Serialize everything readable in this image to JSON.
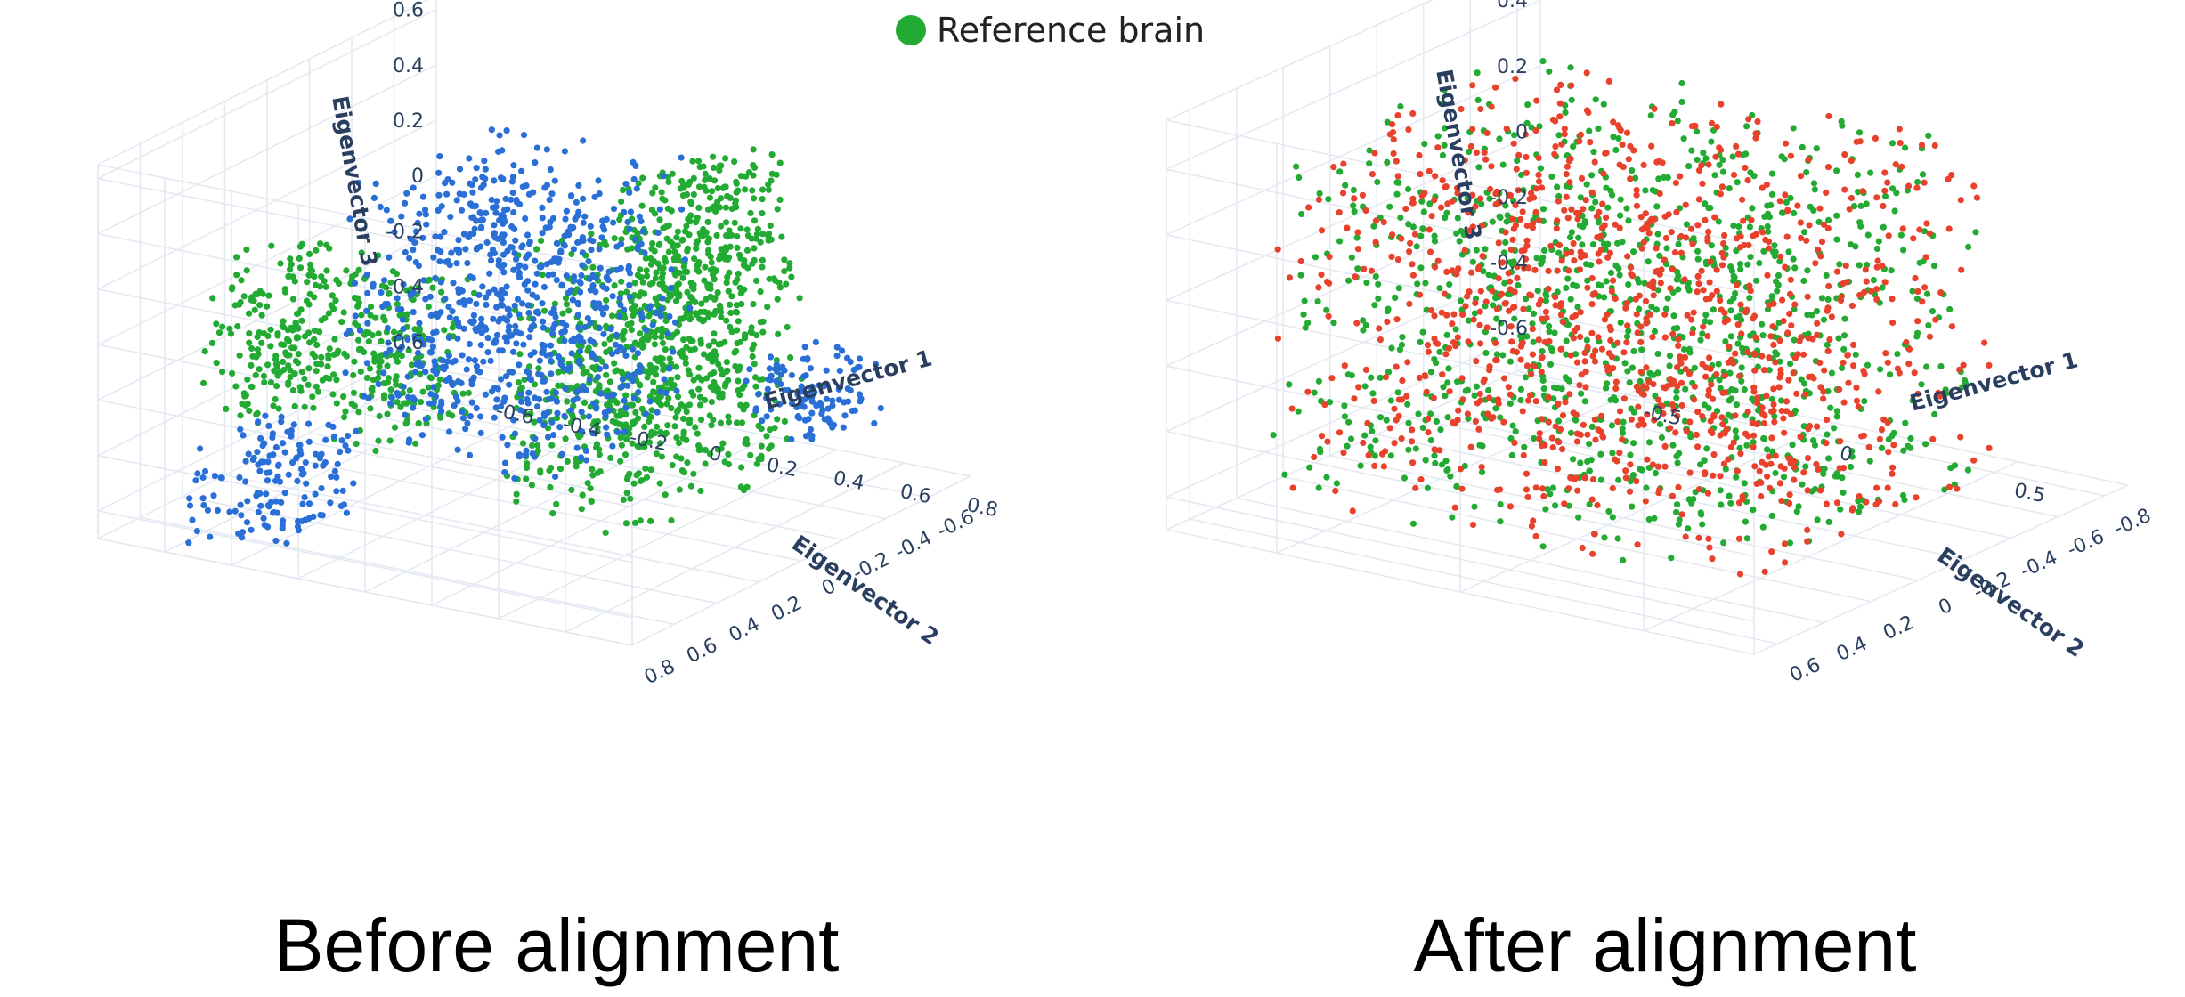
{
  "legend": {
    "label": "Reference brain",
    "color": "#22aa33"
  },
  "captions": {
    "left": "Before alignment",
    "right": "After alignment"
  },
  "chart_data": [
    {
      "type": "scatter",
      "dimensions": 3,
      "title": "Before alignment",
      "xlabel": "Eigenvector 1",
      "ylabel": "Eigenvector 2",
      "zlabel": "Eigenvector 3",
      "x_ticks": [
        "-0.6",
        "-0.4",
        "-0.2",
        "0",
        "0.2",
        "0.4",
        "0.6",
        "0.8"
      ],
      "y_ticks": [
        "-0.6",
        "-0.4",
        "-0.2",
        "0",
        "0.2",
        "0.4",
        "0.6",
        "0.8"
      ],
      "z_ticks": [
        "-0.6",
        "-0.4",
        "-0.2",
        "0",
        "0.2",
        "0.4",
        "0.6"
      ],
      "xlim": [
        -0.8,
        0.8
      ],
      "ylim": [
        -0.8,
        0.8
      ],
      "zlim": [
        -0.7,
        0.65
      ],
      "grid": true,
      "legend_position": "top",
      "series": [
        {
          "name": "Reference brain",
          "color": "#22aa33",
          "clusters": [
            {
              "x": [
                -0.5,
                0.1
              ],
              "y": [
                0.4,
                0.8
              ],
              "z": [
                -0.2,
                0.35
              ]
            },
            {
              "x": [
                0.0,
                0.45
              ],
              "y": [
                -0.6,
                0.2
              ],
              "z": [
                -0.65,
                -0.05
              ]
            },
            {
              "x": [
                0.3,
                0.6
              ],
              "y": [
                -0.3,
                0.1
              ],
              "z": [
                0.1,
                0.6
              ]
            },
            {
              "x": [
                0.1,
                0.55
              ],
              "y": [
                -0.4,
                0.3
              ],
              "z": [
                -0.3,
                0.35
              ]
            }
          ]
        },
        {
          "color": "#2a6fd6",
          "clusters": [
            {
              "x": [
                -0.25,
                0.35
              ],
              "y": [
                -0.2,
                0.5
              ],
              "z": [
                -0.35,
                0.6
              ]
            },
            {
              "x": [
                -0.6,
                -0.3
              ],
              "y": [
                0.3,
                0.75
              ],
              "z": [
                -0.7,
                -0.35
              ]
            },
            {
              "x": [
                0.55,
                0.8
              ],
              "y": [
                -0.4,
                -0.1
              ],
              "z": [
                -0.35,
                -0.1
              ]
            },
            {
              "x": [
                -0.3,
                0.4
              ],
              "y": [
                -0.1,
                0.5
              ],
              "z": [
                -0.3,
                0.45
              ]
            }
          ]
        }
      ]
    },
    {
      "type": "scatter",
      "dimensions": 3,
      "title": "After alignment",
      "xlabel": "Eigenvector 1",
      "ylabel": "Eigenvector 2",
      "zlabel": "Eigenvector 3",
      "x_ticks": [
        "-0.5",
        "0",
        "0.5"
      ],
      "y_ticks": [
        "-0.8",
        "-0.6",
        "-0.4",
        "-0.2",
        "0",
        "0.2",
        "0.4",
        "0.6"
      ],
      "z_ticks": [
        "-0.6",
        "-0.4",
        "-0.2",
        "0",
        "0.2",
        "0.4"
      ],
      "xlim": [
        -0.8,
        0.8
      ],
      "ylim": [
        -0.9,
        0.7
      ],
      "zlim": [
        -0.7,
        0.55
      ],
      "grid": true,
      "legend_position": "top",
      "series": [
        {
          "name": "Reference brain",
          "color": "#22aa33",
          "clusters": [
            {
              "x": [
                -0.6,
                0.7
              ],
              "y": [
                -0.5,
                0.6
              ],
              "z": [
                -0.6,
                0.45
              ]
            }
          ]
        },
        {
          "color": "#e8412c",
          "clusters": [
            {
              "x": [
                -0.6,
                0.7
              ],
              "y": [
                -0.5,
                0.6
              ],
              "z": [
                -0.6,
                0.45
              ]
            }
          ]
        }
      ]
    }
  ]
}
